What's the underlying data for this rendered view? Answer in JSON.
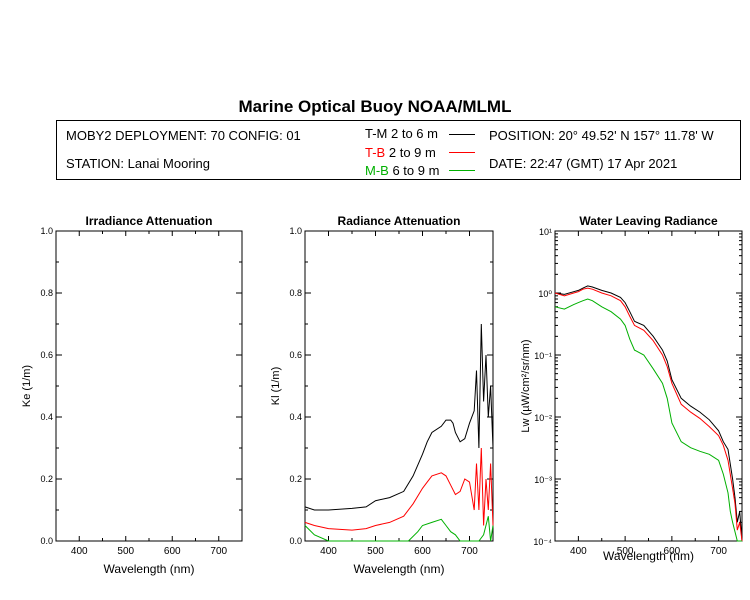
{
  "header": {
    "title": "Marine Optical Buoy NOAA/MLML",
    "deployment": "MOBY2 DEPLOYMENT: 70 CONFIG: 01",
    "station": "STATION: Lanai Mooring",
    "position": "POSITION: 20° 49.52' N   157° 11.78' W",
    "date": "DATE: 22:47 (GMT) 17 Apr 2021"
  },
  "legend": [
    {
      "key": "T-M",
      "depth": "2 to 6  m",
      "color": "#000000"
    },
    {
      "key": "T-B",
      "depth": "2 to 9  m",
      "color": "#ff0000"
    },
    {
      "key": "M-B",
      "depth": "6 to 9  m",
      "color": "#00b000"
    }
  ],
  "colors": {
    "tm": "#000000",
    "tb": "#ff0000",
    "mb": "#00b000"
  },
  "chart_data": [
    {
      "type": "line",
      "title": "Irradiance Attenuation",
      "xlabel": "Wavelength (nm)",
      "ylabel": "Ke  (1/m)",
      "xlim": [
        350,
        750
      ],
      "ylim": [
        0,
        1
      ],
      "xticks": [
        "400",
        "500",
        "600",
        "700"
      ],
      "yticks": [
        "0.0",
        "0.2",
        "0.4",
        "0.6",
        "0.8",
        "1.0"
      ],
      "series": []
    },
    {
      "type": "line",
      "title": "Radiance Attenuation",
      "xlabel": "Wavelength (nm)",
      "ylabel": "Kl  (1/m)",
      "xlim": [
        350,
        750
      ],
      "ylim": [
        0,
        1
      ],
      "xticks": [
        "400",
        "500",
        "600",
        "700"
      ],
      "yticks": [
        "0.0",
        "0.2",
        "0.4",
        "0.6",
        "0.8",
        "1.0"
      ],
      "series": [
        {
          "name": "T-M",
          "x": [
            350,
            370,
            400,
            450,
            480,
            500,
            530,
            560,
            580,
            600,
            610,
            620,
            640,
            650,
            660,
            665,
            670,
            680,
            690,
            700,
            710,
            715,
            720,
            725,
            730,
            735,
            740,
            745,
            750
          ],
          "y": [
            0.11,
            0.1,
            0.1,
            0.105,
            0.11,
            0.13,
            0.14,
            0.16,
            0.21,
            0.28,
            0.32,
            0.35,
            0.37,
            0.39,
            0.39,
            0.38,
            0.35,
            0.32,
            0.33,
            0.38,
            0.42,
            0.55,
            0.3,
            0.7,
            0.45,
            0.6,
            0.4,
            0.5,
            0.3
          ]
        },
        {
          "name": "T-B",
          "x": [
            350,
            370,
            400,
            450,
            480,
            500,
            530,
            560,
            580,
            600,
            610,
            620,
            640,
            650,
            660,
            670,
            680,
            690,
            700,
            710,
            715,
            720,
            725,
            730,
            735,
            740,
            745,
            750
          ],
          "y": [
            0.06,
            0.05,
            0.04,
            0.035,
            0.04,
            0.05,
            0.06,
            0.08,
            0.12,
            0.17,
            0.19,
            0.21,
            0.22,
            0.21,
            0.18,
            0.15,
            0.16,
            0.2,
            0.19,
            0.1,
            0.25,
            0.1,
            0.3,
            0.05,
            0.2,
            0.1,
            0.25,
            0.05
          ]
        },
        {
          "name": "M-B",
          "x": [
            350,
            370,
            400,
            450,
            500,
            550,
            570,
            590,
            600,
            620,
            640,
            650,
            660,
            670,
            680,
            700,
            720,
            730,
            740,
            745,
            750
          ],
          "y": [
            0.05,
            0.02,
            0.0,
            0.0,
            0.0,
            0.0,
            0.0,
            0.03,
            0.05,
            0.06,
            0.07,
            0.05,
            0.03,
            0.02,
            0.0,
            0.0,
            0.0,
            0.02,
            0.08,
            0.0,
            0.05
          ]
        }
      ]
    },
    {
      "type": "line",
      "title": "Water Leaving Radiance",
      "xlabel": "Wavelength (nm)",
      "ylabel": "Lw  (µW/cm²/sr/nm)",
      "xlim": [
        350,
        750
      ],
      "ylim": [
        0.0001,
        10
      ],
      "yscale": "log",
      "xticks": [
        "400",
        "500",
        "600",
        "700"
      ],
      "yticks": [
        "10⁻⁴",
        "10⁻³",
        "10⁻²",
        "10⁻¹",
        "10⁰",
        "10¹"
      ],
      "series": [
        {
          "name": "T-M",
          "x": [
            350,
            370,
            390,
            400,
            410,
            420,
            430,
            450,
            470,
            490,
            500,
            510,
            520,
            540,
            560,
            580,
            590,
            600,
            620,
            640,
            660,
            680,
            700,
            710,
            720,
            730,
            735,
            740,
            745,
            750
          ],
          "y": [
            1.0,
            0.95,
            1.05,
            1.1,
            1.2,
            1.3,
            1.25,
            1.1,
            1.0,
            0.85,
            0.7,
            0.5,
            0.35,
            0.3,
            0.2,
            0.12,
            0.08,
            0.04,
            0.02,
            0.015,
            0.012,
            0.009,
            0.006,
            0.004,
            0.003,
            0.001,
            0.0005,
            0.0002,
            0.0003,
            0.0001
          ]
        },
        {
          "name": "T-B",
          "x": [
            350,
            370,
            390,
            400,
            410,
            420,
            430,
            450,
            470,
            490,
            500,
            510,
            520,
            540,
            560,
            580,
            590,
            600,
            620,
            640,
            660,
            680,
            700,
            710,
            720,
            730,
            735,
            740,
            745,
            750
          ],
          "y": [
            1.0,
            0.9,
            1.0,
            1.05,
            1.15,
            1.2,
            1.15,
            1.0,
            0.9,
            0.75,
            0.6,
            0.42,
            0.3,
            0.25,
            0.17,
            0.1,
            0.065,
            0.035,
            0.016,
            0.012,
            0.0095,
            0.007,
            0.005,
            0.0035,
            0.002,
            0.0007,
            0.0004,
            0.00015,
            0.0002,
            0.0001
          ]
        },
        {
          "name": "M-B",
          "x": [
            350,
            370,
            390,
            400,
            410,
            420,
            430,
            450,
            470,
            490,
            500,
            510,
            520,
            540,
            560,
            580,
            590,
            600,
            620,
            640,
            660,
            680,
            700,
            710,
            720,
            725,
            730,
            740,
            750
          ],
          "y": [
            0.6,
            0.55,
            0.65,
            0.7,
            0.75,
            0.8,
            0.75,
            0.6,
            0.5,
            0.38,
            0.3,
            0.18,
            0.12,
            0.1,
            0.06,
            0.035,
            0.02,
            0.008,
            0.004,
            0.0032,
            0.0028,
            0.0025,
            0.002,
            0.0012,
            0.0006,
            0.0003,
            0.0002,
            0.0001,
            0.0001
          ]
        }
      ]
    }
  ]
}
